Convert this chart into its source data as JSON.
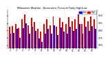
{
  "title": "Milwaukee Weather - Barometric Pressure Daily High/Low",
  "background_color": "#ffffff",
  "high_color": "#ff0000",
  "low_color": "#0000ff",
  "num_days": 28,
  "highs": [
    30.12,
    30.15,
    30.22,
    30.08,
    30.38,
    30.55,
    30.18,
    30.42,
    30.28,
    30.05,
    29.95,
    30.22,
    30.38,
    30.18,
    30.48,
    30.12,
    30.42,
    30.28,
    30.22,
    30.45,
    30.32,
    30.38,
    30.55,
    30.22,
    30.45,
    30.32,
    30.48,
    30.38
  ],
  "lows": [
    29.88,
    29.92,
    30.05,
    29.75,
    30.08,
    30.25,
    29.9,
    30.12,
    29.98,
    29.72,
    29.6,
    29.88,
    30.05,
    29.9,
    30.18,
    29.85,
    30.1,
    29.95,
    29.88,
    30.12,
    29.98,
    30.05,
    30.22,
    29.88,
    30.12,
    29.98,
    30.15,
    30.05
  ],
  "ylim_min": 29.4,
  "ylim_max": 30.7,
  "yticks": [
    29.5,
    29.75,
    30.0,
    30.25,
    30.5
  ],
  "ytick_labels": [
    "9.50",
    "9.75",
    "0.00",
    "0.25",
    "0.50"
  ],
  "x_labels": [
    "1",
    "",
    "3",
    "",
    "5",
    "",
    "7",
    "",
    "9",
    "",
    "11",
    "",
    "13",
    "",
    "15",
    "",
    "17",
    "",
    "19",
    "",
    "21",
    "",
    "23",
    "",
    "25",
    "",
    "27",
    ""
  ],
  "dotted_line_x": 17.5,
  "legend_high": "High",
  "legend_low": "Low"
}
